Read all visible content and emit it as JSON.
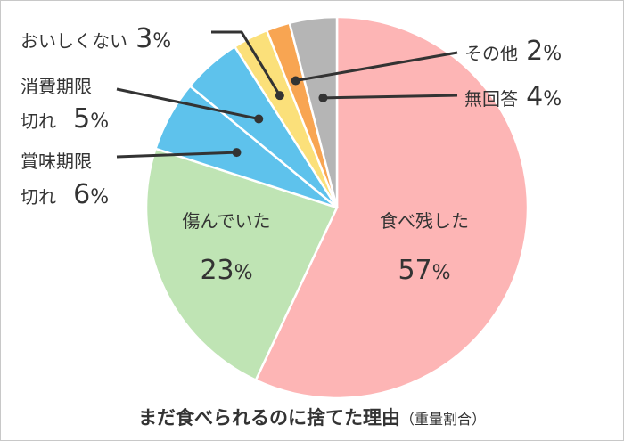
{
  "chart_data": {
    "type": "pie",
    "title": "まだ食べられるのに捨てた理由",
    "subtitle": "（重量割合）",
    "unit": "%",
    "slices": [
      {
        "label": "食べ残した",
        "value": 57,
        "color": "#fdb5b5"
      },
      {
        "label": "傷んでいた",
        "value": 23,
        "color": "#bfe4b4"
      },
      {
        "label": "賞味期限切れ",
        "value": 6,
        "color": "#5ec2ec"
      },
      {
        "label": "消費期限切れ",
        "value": 5,
        "color": "#5ec2ec"
      },
      {
        "label": "おいしくない",
        "value": 3,
        "color": "#fbe07a"
      },
      {
        "label": "その他",
        "value": 2,
        "color": "#f8a552"
      },
      {
        "label": "無回答",
        "value": 4,
        "color": "#b5b5b5"
      }
    ]
  },
  "labels": {
    "tabeno": {
      "line1": "食べ残した",
      "pct": "57"
    },
    "itande": {
      "line1": "傷んでいた",
      "pct": "23"
    },
    "shomi": {
      "line1": "賞味期限",
      "line2": "切れ",
      "pct": "6"
    },
    "shohi": {
      "line1": "消費期限",
      "line2": "切れ",
      "pct": "5"
    },
    "oishiku": {
      "line1": "おいしくない",
      "pct": "3"
    },
    "sonota": {
      "line1": "その他",
      "pct": "2"
    },
    "mukaito": {
      "line1": "無回答",
      "pct": "4"
    },
    "percent_sign": "%"
  }
}
